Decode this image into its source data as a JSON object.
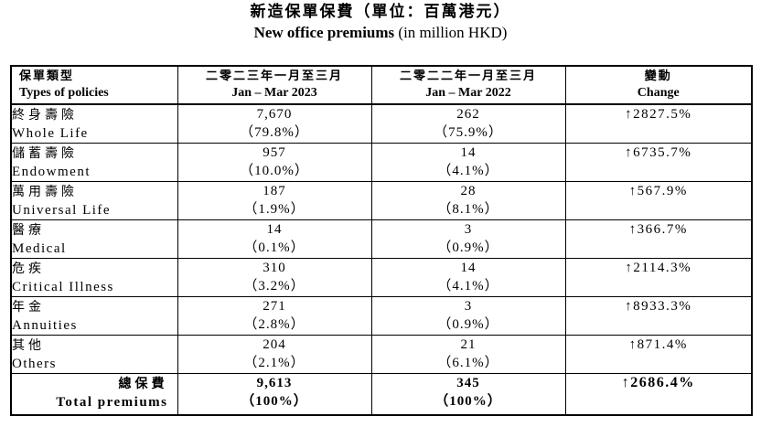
{
  "title": {
    "zh": "新造保單保費（單位：百萬港元）",
    "en_bold": "New office premiums",
    "en_rest": " (in million HKD)"
  },
  "header": {
    "col0_zh": "保單類型",
    "col0_en": "Types of policies",
    "col1_zh": "二零二三年一月至三月",
    "col1_en": "Jan – Mar 2023",
    "col2_zh": "二零二二年一月至三月",
    "col2_en": "Jan – Mar 2022",
    "col3_zh": "變動",
    "col3_en": "Change"
  },
  "rows": [
    {
      "zh": "終身壽險",
      "en": "Whole Life",
      "v2023": "7,670",
      "p2023": "（79.8%）",
      "v2022": "262",
      "p2022": "（75.9%）",
      "change": "↑2827.5%"
    },
    {
      "zh": "儲蓄壽險",
      "en": "Endowment",
      "v2023": "957",
      "p2023": "（10.0%）",
      "v2022": "14",
      "p2022": "（4.1%）",
      "change": "↑6735.7%"
    },
    {
      "zh": "萬用壽險",
      "en": "Universal Life",
      "v2023": "187",
      "p2023": "（1.9%）",
      "v2022": "28",
      "p2022": "（8.1%）",
      "change": "↑567.9%"
    },
    {
      "zh": "醫療",
      "en": "Medical",
      "v2023": "14",
      "p2023": "（0.1%）",
      "v2022": "3",
      "p2022": "（0.9%）",
      "change": "↑366.7%"
    },
    {
      "zh": "危疾",
      "en": "Critical Illness",
      "v2023": "310",
      "p2023": "（3.2%）",
      "v2022": "14",
      "p2022": "（4.1%）",
      "change": "↑2114.3%"
    },
    {
      "zh": "年金",
      "en": "Annuities",
      "v2023": "271",
      "p2023": "（2.8%）",
      "v2022": "3",
      "p2022": "（0.9%）",
      "change": "↑8933.3%"
    },
    {
      "zh": "其他",
      "en": "Others",
      "v2023": "204",
      "p2023": "（2.1%）",
      "v2022": "21",
      "p2022": "（6.1%）",
      "change": "↑871.4%"
    }
  ],
  "total": {
    "zh": "總保費",
    "en": "Total premiums",
    "v2023": "9,613",
    "p2023": "（100%）",
    "v2022": "345",
    "p2022": "（100%）",
    "change": "↑2686.4%"
  }
}
